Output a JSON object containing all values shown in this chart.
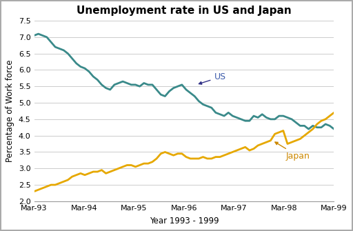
{
  "title": "Unemployment rate in US and Japan",
  "xlabel": "Year 1993 - 1999",
  "ylabel": "Percentage of Work force",
  "ylim": [
    2.0,
    7.5
  ],
  "yticks": [
    2.0,
    2.5,
    3.0,
    3.5,
    4.0,
    4.5,
    5.0,
    5.5,
    6.0,
    6.5,
    7.0,
    7.5
  ],
  "xtick_labels": [
    "Mar-93",
    "Mar-94",
    "Mar-95",
    "Mar-96",
    "Mar-97",
    "Mar-98",
    "Mar-99"
  ],
  "us_color": "#3a8a8a",
  "japan_color": "#e6a800",
  "background_color": "#ffffff",
  "outer_border_color": "#aaaaaa",
  "us_data": [
    7.05,
    7.1,
    7.05,
    7.0,
    6.85,
    6.7,
    6.65,
    6.6,
    6.5,
    6.35,
    6.2,
    6.1,
    6.05,
    5.95,
    5.8,
    5.7,
    5.55,
    5.45,
    5.4,
    5.55,
    5.6,
    5.65,
    5.6,
    5.55,
    5.55,
    5.5,
    5.6,
    5.55,
    5.55,
    5.4,
    5.25,
    5.2,
    5.35,
    5.45,
    5.5,
    5.55,
    5.4,
    5.3,
    5.2,
    5.05,
    4.95,
    4.9,
    4.85,
    4.7,
    4.65,
    4.6,
    4.7,
    4.6,
    4.55,
    4.5,
    4.45,
    4.45,
    4.6,
    4.55,
    4.65,
    4.55,
    4.5,
    4.5,
    4.6,
    4.6,
    4.55,
    4.5,
    4.4,
    4.3,
    4.3,
    4.2,
    4.3,
    4.25,
    4.25,
    4.35,
    4.3,
    4.2
  ],
  "japan_data": [
    2.3,
    2.35,
    2.4,
    2.45,
    2.5,
    2.5,
    2.55,
    2.6,
    2.65,
    2.75,
    2.8,
    2.85,
    2.8,
    2.85,
    2.9,
    2.9,
    2.95,
    2.85,
    2.9,
    2.95,
    3.0,
    3.05,
    3.1,
    3.1,
    3.05,
    3.1,
    3.15,
    3.15,
    3.2,
    3.3,
    3.45,
    3.5,
    3.45,
    3.4,
    3.45,
    3.45,
    3.35,
    3.3,
    3.3,
    3.3,
    3.35,
    3.3,
    3.3,
    3.35,
    3.35,
    3.4,
    3.45,
    3.5,
    3.55,
    3.6,
    3.65,
    3.55,
    3.6,
    3.7,
    3.75,
    3.8,
    3.85,
    4.05,
    4.1,
    4.15,
    3.75,
    3.8,
    3.85,
    3.9,
    4.0,
    4.1,
    4.2,
    4.35,
    4.45,
    4.5,
    4.6,
    4.7
  ],
  "us_label": "US",
  "japan_label": "Japan",
  "us_label_color": "#3a5aaa",
  "japan_label_color": "#cc8800",
  "linewidth": 2.0,
  "title_fontsize": 11,
  "axis_label_fontsize": 8.5,
  "tick_fontsize": 8
}
